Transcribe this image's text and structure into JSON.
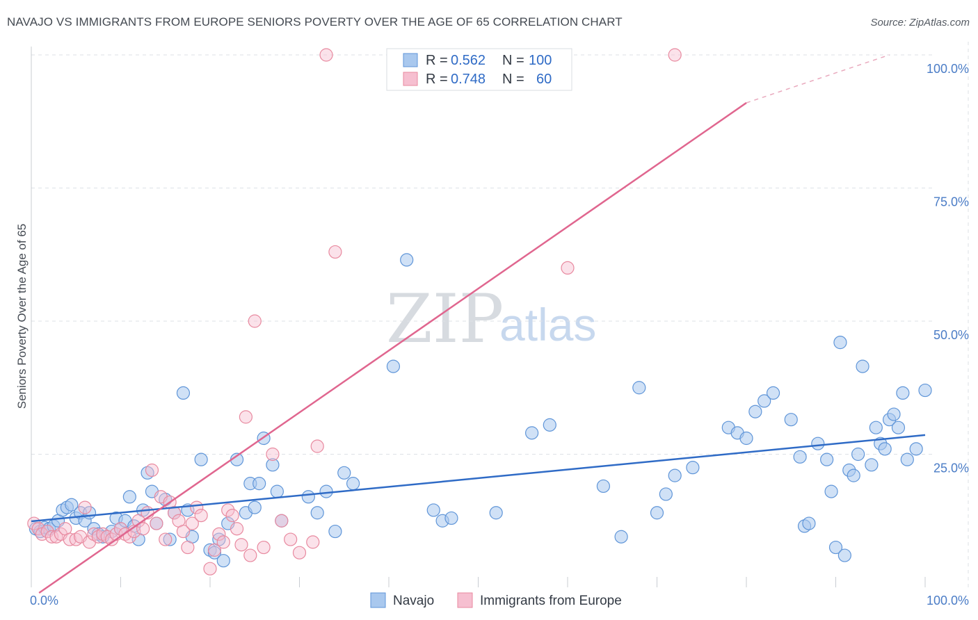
{
  "header": {
    "title": "NAVAJO VS IMMIGRANTS FROM EUROPE SENIORS POVERTY OVER THE AGE OF 65 CORRELATION CHART",
    "source": "Source: ZipAtlas.com"
  },
  "watermark": {
    "zip": "ZIP",
    "atlas": "atlas"
  },
  "colors": {
    "navajo_fill": "#a9c8ee",
    "navajo_stroke": "#5f95d8",
    "navajo_line": "#2f6bc6",
    "europe_fill": "#f6bfd0",
    "europe_stroke": "#e8899f",
    "europe_line": "#e0668f",
    "grid": "#dde1e6",
    "axis_text": "#4a7cc6"
  },
  "stats": {
    "r_label": "R =",
    "n_label": "N =",
    "navajo_r": "0.562",
    "navajo_n": "100",
    "europe_r": "0.748",
    "europe_n": "60"
  },
  "chart_data": {
    "type": "scatter",
    "title": "NAVAJO VS IMMIGRANTS FROM EUROPE SENIORS POVERTY OVER THE AGE OF 65 CORRELATION CHART",
    "xlabel": "",
    "ylabel": "Seniors Poverty Over the Age of 65",
    "xlim": [
      0,
      100
    ],
    "ylim": [
      0,
      100
    ],
    "x_tick_labels": [
      "0.0%",
      "100.0%"
    ],
    "y_ticks": [
      25,
      50,
      75,
      100
    ],
    "y_tick_labels": [
      "25.0%",
      "50.0%",
      "75.0%",
      "100.0%"
    ],
    "grid": true,
    "legend_position": "bottom-center",
    "series": [
      {
        "name": "Navajo",
        "r": 0.562,
        "n": 100,
        "trend": {
          "x": [
            0,
            100
          ],
          "y": [
            12.4,
            28.6
          ]
        },
        "points": [
          [
            0.5,
            11
          ],
          [
            1,
            10.5
          ],
          [
            1.5,
            11.2
          ],
          [
            2,
            11
          ],
          [
            2.5,
            11.5
          ],
          [
            3,
            12.5
          ],
          [
            3.5,
            14.5
          ],
          [
            4,
            15
          ],
          [
            4.5,
            15.5
          ],
          [
            5,
            13
          ],
          [
            5.5,
            14
          ],
          [
            6,
            12.5
          ],
          [
            6.5,
            14
          ],
          [
            7,
            11
          ],
          [
            7.5,
            10
          ],
          [
            8,
            9.5
          ],
          [
            9,
            10.5
          ],
          [
            9.5,
            13
          ],
          [
            10,
            11
          ],
          [
            10.5,
            12.5
          ],
          [
            11,
            17
          ],
          [
            11.5,
            11.5
          ],
          [
            12,
            9
          ],
          [
            12.5,
            14.5
          ],
          [
            13,
            21.5
          ],
          [
            13.5,
            18
          ],
          [
            14,
            12
          ],
          [
            15,
            16.5
          ],
          [
            15.5,
            9
          ],
          [
            16,
            14
          ],
          [
            17,
            36.5
          ],
          [
            17.5,
            14.5
          ],
          [
            18,
            9.5
          ],
          [
            19,
            24
          ],
          [
            20,
            7
          ],
          [
            20.5,
            6.5
          ],
          [
            21,
            9
          ],
          [
            21.5,
            5
          ],
          [
            22,
            12
          ],
          [
            23,
            24
          ],
          [
            24,
            14
          ],
          [
            24.5,
            19.5
          ],
          [
            25,
            15
          ],
          [
            25.5,
            19.5
          ],
          [
            26,
            28
          ],
          [
            27,
            23
          ],
          [
            27.5,
            18
          ],
          [
            28,
            12.5
          ],
          [
            31,
            17
          ],
          [
            32,
            14
          ],
          [
            33,
            18
          ],
          [
            34,
            10.5
          ],
          [
            35,
            21.5
          ],
          [
            36,
            19.5
          ],
          [
            40.5,
            41.5
          ],
          [
            42,
            61.5
          ],
          [
            45,
            14.5
          ],
          [
            46,
            12.5
          ],
          [
            47,
            13
          ],
          [
            52,
            14
          ],
          [
            56,
            29
          ],
          [
            58,
            30.5
          ],
          [
            64,
            19
          ],
          [
            66,
            9.5
          ],
          [
            68,
            37.5
          ],
          [
            70,
            14
          ],
          [
            71,
            17.5
          ],
          [
            72,
            21
          ],
          [
            74,
            22.5
          ],
          [
            78,
            30
          ],
          [
            79,
            29
          ],
          [
            80,
            28
          ],
          [
            81,
            33
          ],
          [
            82,
            35
          ],
          [
            83,
            36.5
          ],
          [
            85,
            31.5
          ],
          [
            86,
            24.5
          ],
          [
            86.5,
            11.5
          ],
          [
            87,
            12
          ],
          [
            88,
            27
          ],
          [
            89,
            24
          ],
          [
            89.5,
            18
          ],
          [
            90,
            7.5
          ],
          [
            90.5,
            46
          ],
          [
            91,
            6
          ],
          [
            91.5,
            22
          ],
          [
            92,
            21
          ],
          [
            92.5,
            25
          ],
          [
            93,
            41.5
          ],
          [
            94,
            23
          ],
          [
            94.5,
            30
          ],
          [
            95,
            27
          ],
          [
            95.5,
            26
          ],
          [
            96,
            31.5
          ],
          [
            96.5,
            32.5
          ],
          [
            97,
            30
          ],
          [
            97.5,
            36.5
          ],
          [
            98,
            24
          ],
          [
            99,
            26
          ],
          [
            100,
            37
          ]
        ]
      },
      {
        "name": "Immigrants from Europe",
        "r": 0.748,
        "n": 60,
        "trend": {
          "x": [
            0,
            80
          ],
          "y": [
            -1,
            91
          ]
        },
        "trend_dashed": {
          "x": [
            80,
            96
          ],
          "y": [
            91,
            100
          ]
        },
        "points": [
          [
            0.3,
            12
          ],
          [
            0.8,
            11
          ],
          [
            1.2,
            10
          ],
          [
            1.8,
            10.5
          ],
          [
            2.3,
            9.5
          ],
          [
            2.8,
            9.5
          ],
          [
            3.3,
            10
          ],
          [
            3.8,
            11
          ],
          [
            4.3,
            9
          ],
          [
            5,
            9
          ],
          [
            5.5,
            9.5
          ],
          [
            6,
            15
          ],
          [
            6.5,
            8.5
          ],
          [
            7,
            10
          ],
          [
            7.5,
            9.5
          ],
          [
            8,
            10
          ],
          [
            8.5,
            9.5
          ],
          [
            9,
            9
          ],
          [
            9.5,
            10
          ],
          [
            10,
            11
          ],
          [
            10.5,
            10
          ],
          [
            11,
            9.5
          ],
          [
            11.5,
            10.5
          ],
          [
            12,
            12.5
          ],
          [
            12.5,
            11
          ],
          [
            13,
            14
          ],
          [
            13.5,
            22
          ],
          [
            14,
            12
          ],
          [
            14.5,
            17
          ],
          [
            15,
            9
          ],
          [
            15.5,
            16
          ],
          [
            16,
            14
          ],
          [
            16.5,
            12.5
          ],
          [
            17,
            10.5
          ],
          [
            17.5,
            7.5
          ],
          [
            18,
            12
          ],
          [
            18.5,
            15
          ],
          [
            19,
            13.5
          ],
          [
            20,
            3.5
          ],
          [
            20.5,
            7
          ],
          [
            21,
            10
          ],
          [
            21.5,
            8.5
          ],
          [
            22,
            14.5
          ],
          [
            22.5,
            13.5
          ],
          [
            23,
            11
          ],
          [
            23.5,
            8
          ],
          [
            24,
            32
          ],
          [
            24.5,
            6
          ],
          [
            25,
            50
          ],
          [
            26,
            7.5
          ],
          [
            27,
            25
          ],
          [
            28,
            12.5
          ],
          [
            29,
            9
          ],
          [
            30,
            6.5
          ],
          [
            31.5,
            8.5
          ],
          [
            32,
            26.5
          ],
          [
            33,
            100
          ],
          [
            34,
            63
          ],
          [
            60,
            60
          ],
          [
            72,
            100
          ]
        ]
      }
    ]
  },
  "legend": {
    "items": [
      {
        "label": "Navajo"
      },
      {
        "label": "Immigrants from Europe"
      }
    ]
  }
}
